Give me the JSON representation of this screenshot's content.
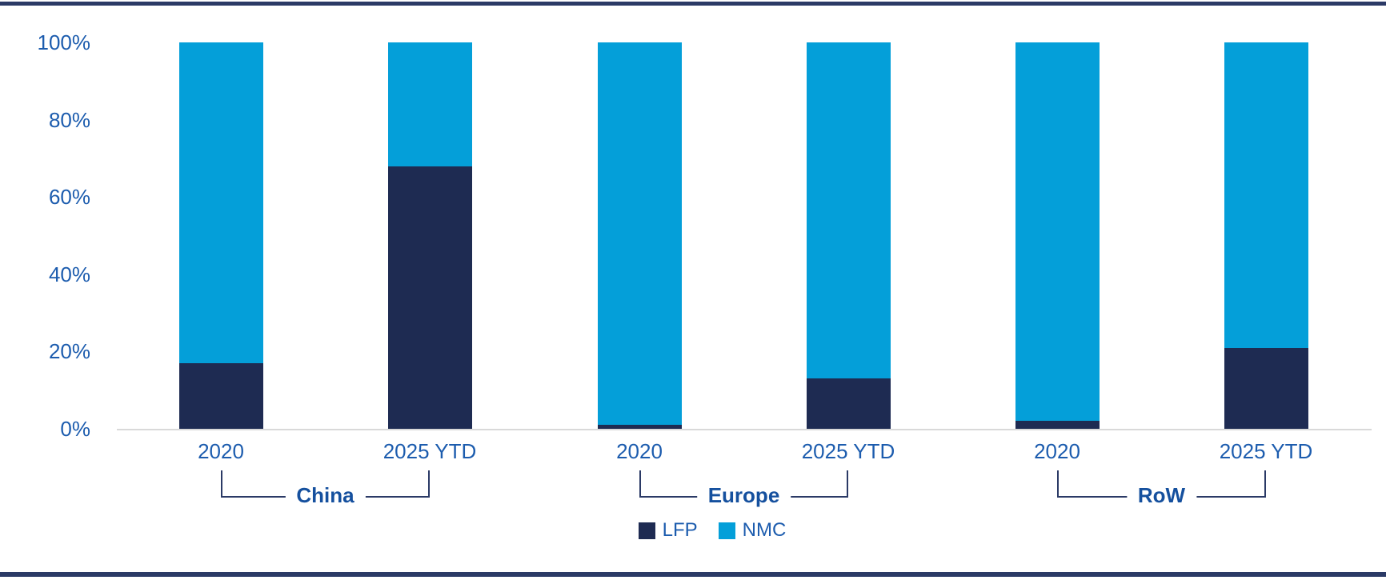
{
  "chart_data": {
    "type": "bar",
    "stacked": true,
    "orientation": "vertical",
    "unit": "%",
    "ylim": [
      0,
      100
    ],
    "yticks": [
      "100%",
      "80%",
      "60%",
      "40%",
      "20%",
      "0%"
    ],
    "grid": false,
    "legend_position": "bottom",
    "series": [
      {
        "name": "LFP",
        "color": "#1e2b52"
      },
      {
        "name": "NMC",
        "color": "#049fd9"
      }
    ],
    "groups": [
      {
        "region": "China",
        "bars": [
          {
            "label": "2020",
            "values": [
              17,
              83
            ]
          },
          {
            "label": "2025 YTD",
            "values": [
              68,
              32
            ]
          }
        ]
      },
      {
        "region": "Europe",
        "bars": [
          {
            "label": "2020",
            "values": [
              1,
              99
            ]
          },
          {
            "label": "2025 YTD",
            "values": [
              13,
              87
            ]
          }
        ]
      },
      {
        "region": "RoW",
        "bars": [
          {
            "label": "2020",
            "values": [
              2,
              98
            ]
          },
          {
            "label": "2025 YTD",
            "values": [
              21,
              79
            ]
          }
        ]
      }
    ]
  },
  "colors": {
    "lfp": "#1e2b52",
    "nmc": "#049fd9",
    "page_rule": "#2b3a66",
    "axis_line": "#d9d9d9",
    "tick_label": "#1c5cae",
    "region_label": "#15509e",
    "bracket_line": "#2b3a66"
  }
}
